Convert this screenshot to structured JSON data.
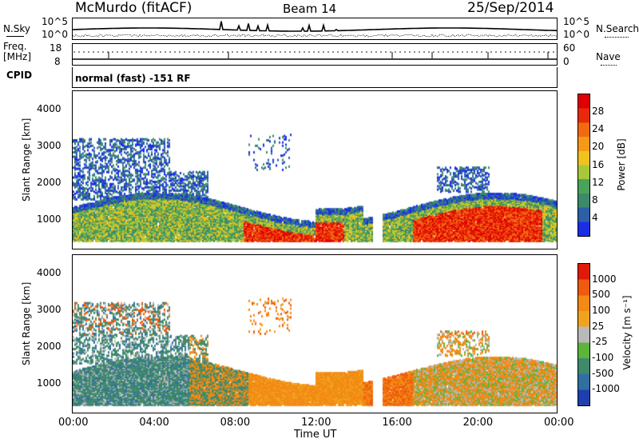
{
  "header": {
    "station": "McMurdo (fitACF)",
    "beam": "Beam 14",
    "date": "25/Sep/2014"
  },
  "top_panel": {
    "left_label": "N.Sky",
    "right_label": "N.Search",
    "left_ticks": [
      "10^5",
      "10^0"
    ],
    "right_ticks": [
      "10^5",
      "10^0"
    ]
  },
  "freq_panel": {
    "left_label_1": "Freq.",
    "left_label_2": "[MHz]",
    "left_ticks": [
      "18",
      "8"
    ],
    "right_label": "Nave",
    "right_ticks": [
      "60",
      "0"
    ]
  },
  "cpid": {
    "label": "CPID",
    "mode": "normal (fast) -151 RF"
  },
  "colors": {
    "power_scale": [
      "#1a2ee6",
      "#2d5fa8",
      "#3d8a6a",
      "#4aa35a",
      "#a8c83a",
      "#f0c21e",
      "#f59a16",
      "#f26a10",
      "#e82a0c",
      "#e00000"
    ],
    "velocity_scale": [
      "#1f3fae",
      "#2f6fa2",
      "#3f8a6c",
      "#5cb43c",
      "#b9b9b9",
      "#f0a41e",
      "#f28a14",
      "#ee5a0e",
      "#e01a0a"
    ]
  },
  "chart_data": [
    {
      "type": "heatmap",
      "title": "",
      "xlabel": "",
      "ylabel": "Slant Range [km]",
      "x_ticks": [
        "00:00",
        "04:00",
        "08:00",
        "12:00",
        "16:00",
        "20:00",
        "00:00"
      ],
      "y_ticks": [
        "1000",
        "2000",
        "3000",
        "4000"
      ],
      "ylim": [
        180,
        4500
      ],
      "colorbar": {
        "label": "Power [dB]",
        "ticks": [
          "4",
          "8",
          "12",
          "16",
          "20",
          "24",
          "28"
        ],
        "range": [
          0,
          32
        ]
      }
    },
    {
      "type": "heatmap",
      "title": "",
      "xlabel": "Time UT",
      "ylabel": "Slant Range [km]",
      "x_ticks": [
        "00:00",
        "04:00",
        "08:00",
        "12:00",
        "16:00",
        "20:00",
        "00:00"
      ],
      "y_ticks": [
        "1000",
        "2000",
        "3000",
        "4000"
      ],
      "ylim": [
        180,
        4500
      ],
      "colorbar": {
        "label": "Velocity [m s⁻¹]",
        "ticks": [
          "1000",
          "500",
          "100",
          "25",
          "-25",
          "-100",
          "-500",
          "-1000"
        ]
      }
    }
  ]
}
